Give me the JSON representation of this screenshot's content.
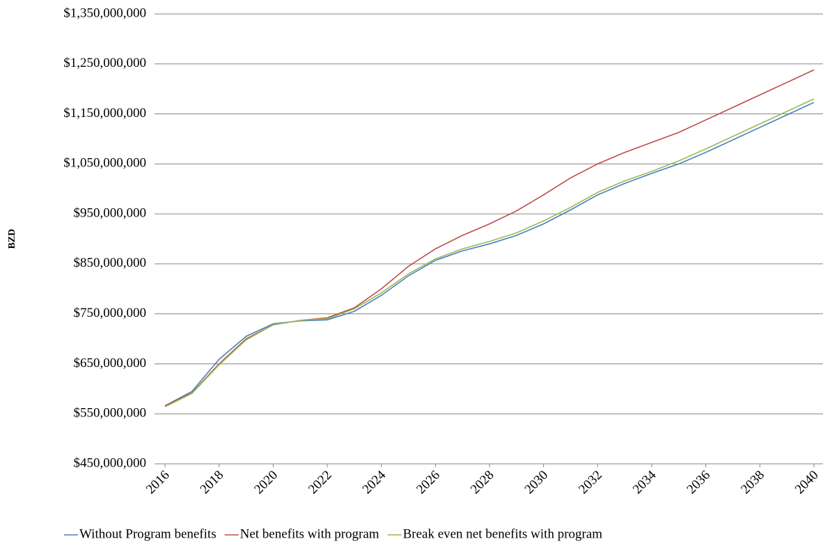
{
  "chart_data": {
    "type": "line",
    "y_label": "BZD",
    "x": [
      2016,
      2017,
      2018,
      2019,
      2020,
      2021,
      2022,
      2023,
      2024,
      2025,
      2026,
      2027,
      2028,
      2029,
      2030,
      2031,
      2032,
      2033,
      2034,
      2035,
      2036,
      2037,
      2038,
      2039,
      2040
    ],
    "xlim": [
      2016,
      2040
    ],
    "xticks": [
      2016,
      2018,
      2020,
      2022,
      2024,
      2026,
      2028,
      2030,
      2032,
      2034,
      2036,
      2038,
      2040
    ],
    "ylim": [
      450000000,
      1350000000
    ],
    "yticks": [
      {
        "value": 450000000,
        "label": "$450,000,000"
      },
      {
        "value": 550000000,
        "label": "$550,000,000"
      },
      {
        "value": 650000000,
        "label": "$650,000,000"
      },
      {
        "value": 750000000,
        "label": "$750,000,000"
      },
      {
        "value": 850000000,
        "label": "$850,000,000"
      },
      {
        "value": 950000000,
        "label": "$950,000,000"
      },
      {
        "value": 1050000000,
        "label": "$1,050,000,000"
      },
      {
        "value": 1150000000,
        "label": "$1,150,000,000"
      },
      {
        "value": 1250000000,
        "label": "$1,250,000,000"
      },
      {
        "value": 1350000000,
        "label": "$1,350,000,000"
      }
    ],
    "grid": true,
    "legend": "bottom",
    "series": [
      {
        "name": "Without Program benefits",
        "color": "#4a7ebb",
        "values": [
          566000000,
          595000000,
          659000000,
          705000000,
          730000000,
          736000000,
          738000000,
          755000000,
          787000000,
          826000000,
          857000000,
          876000000,
          890000000,
          907000000,
          930000000,
          958000000,
          988000000,
          1011000000,
          1031000000,
          1050000000,
          1073000000,
          1098000000,
          1123000000,
          1148000000,
          1173000000
        ]
      },
      {
        "name": "Net benefits with program",
        "color": "#be4b48",
        "values": [
          566000000,
          592000000,
          650000000,
          700000000,
          728000000,
          737000000,
          742000000,
          762000000,
          800000000,
          845000000,
          880000000,
          907000000,
          930000000,
          956000000,
          988000000,
          1022000000,
          1050000000,
          1073000000,
          1093000000,
          1113000000,
          1138000000,
          1163000000,
          1188000000,
          1213000000,
          1238000000
        ]
      },
      {
        "name": "Break even net benefits with program",
        "color": "#98b954",
        "values": [
          564000000,
          591000000,
          648000000,
          698000000,
          728000000,
          737000000,
          740000000,
          760000000,
          792000000,
          830000000,
          860000000,
          880000000,
          895000000,
          912000000,
          936000000,
          963000000,
          993000000,
          1016000000,
          1035000000,
          1056000000,
          1080000000,
          1105000000,
          1130000000,
          1155000000,
          1180000000
        ]
      }
    ]
  }
}
